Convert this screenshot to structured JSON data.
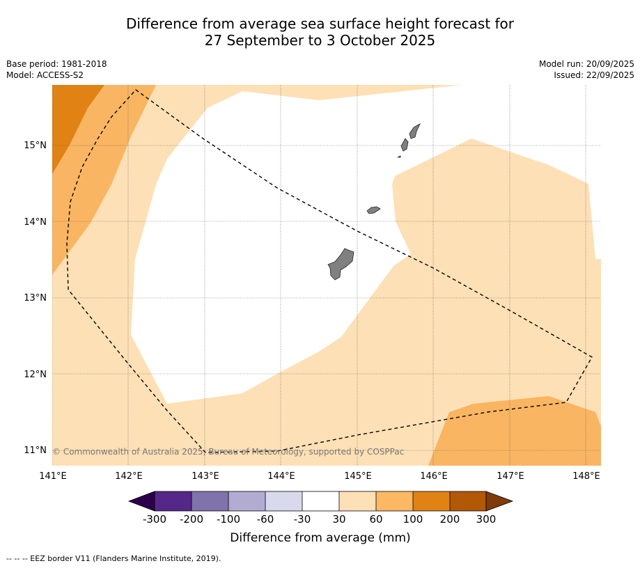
{
  "title": {
    "line1": "Difference from average sea surface height forecast for",
    "line2": "27 September to 3 October 2025"
  },
  "meta": {
    "base_period": "Base period: 1981-2018",
    "model": "Model: ACCESS-S2",
    "model_run": "Model run: 20/09/2025",
    "issued": "Issued: 22/09/2025"
  },
  "map": {
    "lon_labels": [
      "141°E",
      "142°E",
      "143°E",
      "144°E",
      "145°E",
      "146°E",
      "147°E",
      "148°E"
    ],
    "lat_labels": [
      "15°N",
      "14°N",
      "13°N",
      "12°N",
      "11°N"
    ],
    "copyright": "© Commonwealth of Australia 2025, Bureau of Meteorology, supported by COSPPac",
    "colors": {
      "c30_60": "#fde0b5",
      "c60_100": "#f9b562",
      "c100_200": "#e08214",
      "c200_300": "#b35806",
      "land": "#808080",
      "eez": "#000000"
    }
  },
  "legend": {
    "labels": [
      "-300",
      "-200",
      "-100",
      "-60",
      "-30",
      "30",
      "60",
      "100",
      "200",
      "300"
    ],
    "colors": [
      "#2d004b",
      "#542788",
      "#8073ac",
      "#b2abd2",
      "#d8daeb",
      "#ffffff",
      "#fee0b6",
      "#fdb863",
      "#e08214",
      "#b35806",
      "#7f3b08"
    ],
    "title": "Difference from average (mm)"
  },
  "footnote": "--  --  -- EEZ border V11 (Flanders Marine Institute, 2019)."
}
